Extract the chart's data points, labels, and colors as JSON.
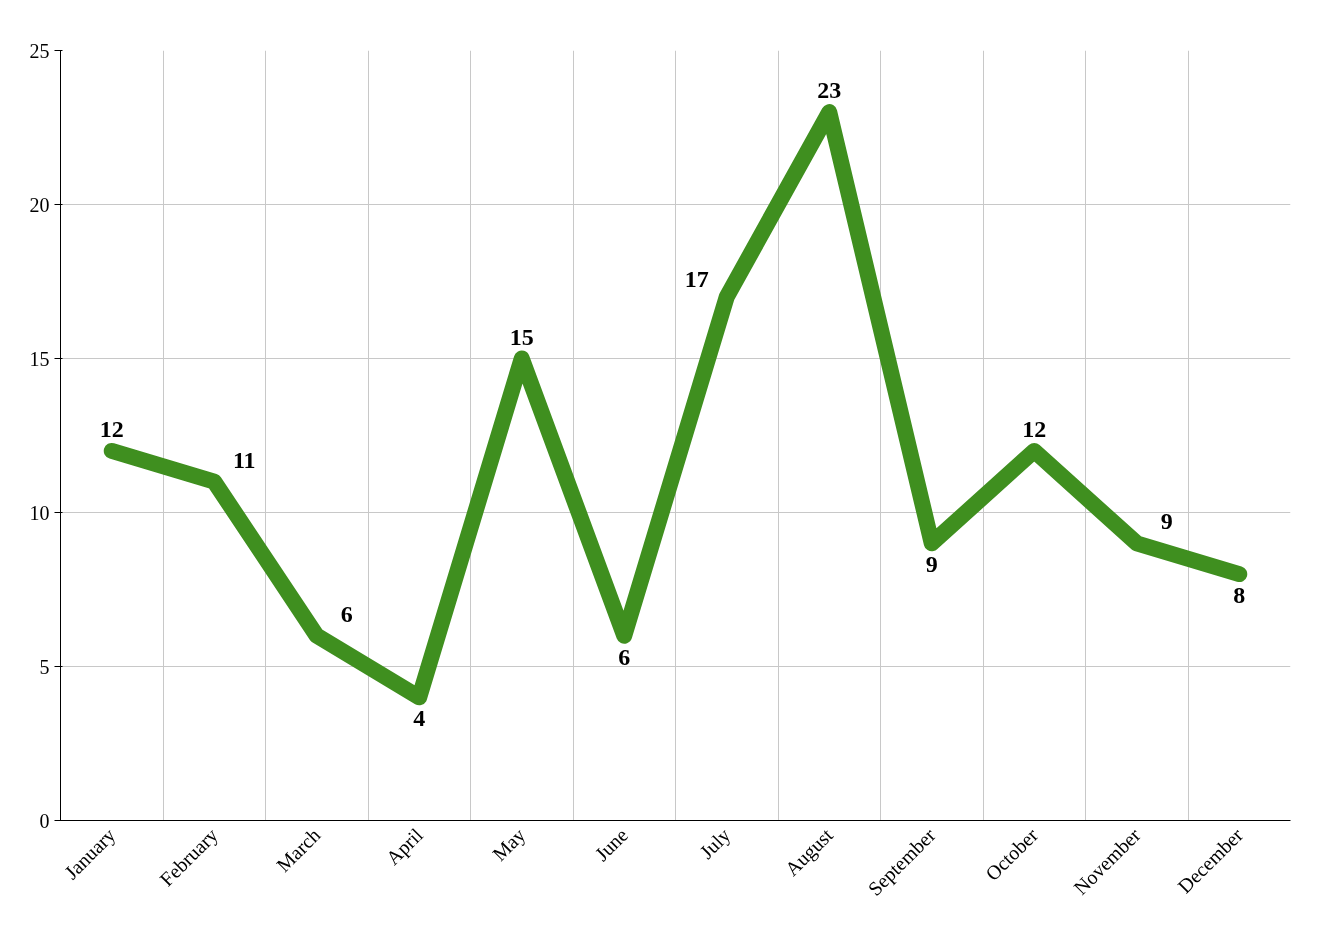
{
  "chart_data": {
    "type": "line",
    "categories": [
      "January",
      "February",
      "March",
      "April",
      "May",
      "June",
      "July",
      "August",
      "September",
      "October",
      "November",
      "December"
    ],
    "series": [
      {
        "color": "#3f8f1f",
        "values": [
          12,
          11,
          6,
          4,
          15,
          6,
          17,
          23,
          9,
          12,
          9,
          8
        ]
      }
    ],
    "ylim": [
      0,
      25
    ],
    "yticks": [
      0,
      5,
      10,
      15,
      20,
      25
    ],
    "grid": true,
    "data_labels": true,
    "line_style": "solid"
  }
}
